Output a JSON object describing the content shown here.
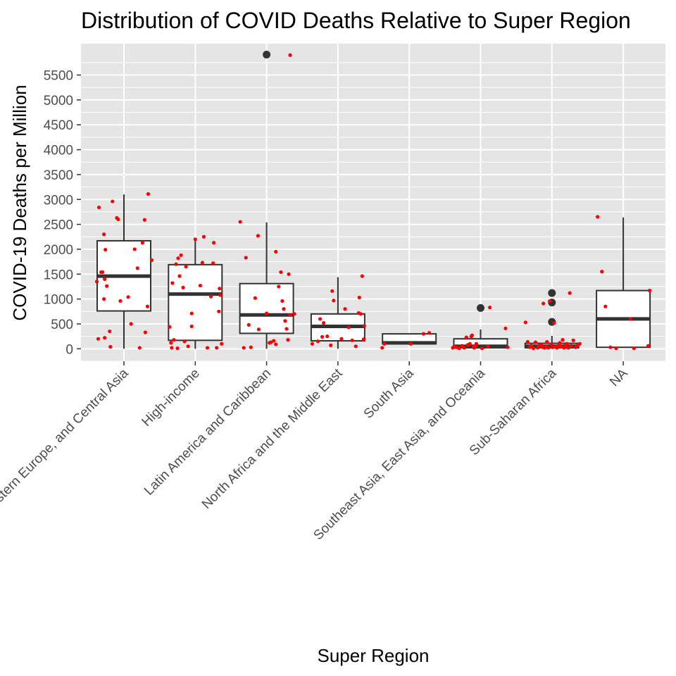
{
  "chart_data": {
    "type": "box",
    "title": "Distribution of COVID Deaths Relative to Super Region",
    "xlabel": "Super Region",
    "ylabel": "COVID-19 Deaths per Million",
    "ylim": [
      -250,
      6130
    ],
    "yticks": [
      0,
      500,
      1000,
      1500,
      2000,
      2500,
      3000,
      3500,
      4000,
      4500,
      5000,
      5500
    ],
    "grid": true,
    "colors": {
      "panel": "#e5e5e5",
      "grid": "#ffffff",
      "box_fill": "#ffffff",
      "box_line": "#333333",
      "outlier": "#333333",
      "jitter": "#ff0000"
    },
    "categories": [
      "Central Europe, Eastern Europe, and Central Asia",
      "High-income",
      "Latin America and Caribbean",
      "North Africa and the Middle East",
      "South Asia",
      "Southeast Asia, East Asia, and Oceania",
      "Sub-Saharan Africa",
      "NA"
    ],
    "boxes": [
      {
        "min": 0,
        "q1": 760,
        "median": 1460,
        "q3": 2170,
        "max": 3100,
        "outliers": []
      },
      {
        "min": 0,
        "q1": 170,
        "median": 1100,
        "q3": 1690,
        "max": 2200,
        "outliers": []
      },
      {
        "min": 0,
        "q1": 310,
        "median": 680,
        "q3": 1310,
        "max": 2540,
        "outliers": [
          5910
        ]
      },
      {
        "min": 0,
        "q1": 160,
        "median": 450,
        "q3": 700,
        "max": 1440,
        "outliers": []
      },
      {
        "min": 80,
        "q1": 100,
        "median": 120,
        "q3": 300,
        "max": 310,
        "outliers": []
      },
      {
        "min": 0,
        "q1": 20,
        "median": 50,
        "q3": 200,
        "max": 390,
        "outliers": [
          820
        ]
      },
      {
        "min": 0,
        "q1": 20,
        "median": 50,
        "q3": 110,
        "max": 260,
        "outliers": [
          540,
          930,
          1120
        ]
      },
      {
        "min": 20,
        "q1": 30,
        "median": 600,
        "q3": 1170,
        "max": 2640,
        "outliers": []
      }
    ],
    "jitter_points": [
      [
        [
          -0.38,
          1350
        ],
        [
          -0.36,
          200
        ],
        [
          -0.35,
          2840
        ],
        [
          -0.3,
          1540
        ],
        [
          -0.28,
          1000
        ],
        [
          -0.28,
          2300
        ],
        [
          -0.27,
          1400
        ],
        [
          -0.27,
          220
        ],
        [
          -0.26,
          1990
        ],
        [
          -0.24,
          1260
        ],
        [
          -0.2,
          350
        ],
        [
          -0.19,
          40
        ],
        [
          -0.16,
          2960
        ],
        [
          -0.1,
          2630
        ],
        [
          -0.08,
          2600
        ],
        [
          -0.05,
          960
        ],
        [
          0.06,
          1040
        ],
        [
          0.1,
          500
        ],
        [
          0.15,
          2000
        ],
        [
          0.19,
          1620
        ],
        [
          0.22,
          20
        ],
        [
          0.26,
          2130
        ],
        [
          0.29,
          2590
        ],
        [
          0.3,
          330
        ],
        [
          0.33,
          850
        ],
        [
          0.34,
          3110
        ],
        [
          0.39,
          1780
        ],
        [
          -0.32,
          1540
        ]
      ],
      [
        [
          -0.36,
          440
        ],
        [
          -0.34,
          120
        ],
        [
          -0.33,
          20
        ],
        [
          -0.32,
          1320
        ],
        [
          -0.3,
          180
        ],
        [
          -0.27,
          1700
        ],
        [
          -0.25,
          10
        ],
        [
          -0.24,
          1820
        ],
        [
          -0.22,
          1460
        ],
        [
          -0.2,
          1880
        ],
        [
          -0.17,
          1230
        ],
        [
          -0.15,
          150
        ],
        [
          -0.13,
          1650
        ],
        [
          -0.1,
          50
        ],
        [
          -0.05,
          710
        ],
        [
          -0.05,
          450
        ],
        [
          0,
          2200
        ],
        [
          0.07,
          1270
        ],
        [
          0.1,
          1730
        ],
        [
          0.12,
          2250
        ],
        [
          0.17,
          20
        ],
        [
          0.22,
          1050
        ],
        [
          0.25,
          1720
        ],
        [
          0.26,
          2130
        ],
        [
          0.3,
          20
        ],
        [
          0.33,
          750
        ],
        [
          0.34,
          1210
        ],
        [
          0.35,
          1080
        ],
        [
          0.37,
          100
        ]
      ],
      [
        [
          -0.37,
          2550
        ],
        [
          -0.32,
          20
        ],
        [
          -0.29,
          1830
        ],
        [
          -0.25,
          480
        ],
        [
          -0.22,
          30
        ],
        [
          -0.16,
          1020
        ],
        [
          -0.12,
          2270
        ],
        [
          -0.11,
          390
        ],
        [
          0,
          710
        ],
        [
          0.04,
          120
        ],
        [
          0.06,
          130
        ],
        [
          0.1,
          160
        ],
        [
          0.13,
          90
        ],
        [
          0.13,
          1950
        ],
        [
          0.17,
          1250
        ],
        [
          0.2,
          1540
        ],
        [
          0.22,
          960
        ],
        [
          0.24,
          800
        ],
        [
          0.26,
          560
        ],
        [
          0.28,
          400
        ],
        [
          0.3,
          180
        ],
        [
          0.31,
          1500
        ],
        [
          0.33,
          680
        ],
        [
          0.39,
          700
        ],
        [
          0.33,
          5900
        ]
      ],
      [
        [
          -0.36,
          100
        ],
        [
          -0.28,
          150
        ],
        [
          -0.25,
          600
        ],
        [
          -0.22,
          240
        ],
        [
          -0.2,
          520
        ],
        [
          -0.15,
          250
        ],
        [
          -0.1,
          70
        ],
        [
          -0.08,
          1160
        ],
        [
          -0.06,
          970
        ],
        [
          0.05,
          200
        ],
        [
          0.1,
          800
        ],
        [
          0.15,
          430
        ],
        [
          0.2,
          170
        ],
        [
          0.25,
          50
        ],
        [
          0.29,
          720
        ],
        [
          0.3,
          1030
        ],
        [
          0.32,
          700
        ],
        [
          0.34,
          1460
        ],
        [
          0.36,
          190
        ],
        [
          0.37,
          460
        ]
      ],
      [
        [
          -0.38,
          20
        ],
        [
          -0.35,
          100
        ],
        [
          0.02,
          100
        ],
        [
          0.2,
          300
        ],
        [
          0.28,
          320
        ]
      ],
      [
        [
          -0.39,
          20
        ],
        [
          -0.37,
          50
        ],
        [
          -0.34,
          30
        ],
        [
          -0.3,
          10
        ],
        [
          -0.26,
          60
        ],
        [
          -0.23,
          20
        ],
        [
          -0.2,
          230
        ],
        [
          -0.18,
          80
        ],
        [
          -0.15,
          100
        ],
        [
          -0.13,
          250
        ],
        [
          -0.12,
          270
        ],
        [
          -0.1,
          40
        ],
        [
          -0.09,
          20
        ],
        [
          -0.07,
          60
        ],
        [
          -0.06,
          100
        ],
        [
          0.02,
          10
        ],
        [
          0.1,
          50
        ],
        [
          0.13,
          830
        ],
        [
          0.35,
          410
        ],
        [
          0.38,
          30
        ]
      ],
      [
        [
          -0.37,
          530
        ],
        [
          -0.34,
          140
        ],
        [
          -0.31,
          30
        ],
        [
          -0.29,
          60
        ],
        [
          -0.26,
          10
        ],
        [
          -0.23,
          130
        ],
        [
          -0.2,
          20
        ],
        [
          -0.18,
          60
        ],
        [
          -0.15,
          80
        ],
        [
          -0.13,
          30
        ],
        [
          -0.12,
          910
        ],
        [
          -0.1,
          20
        ],
        [
          -0.08,
          50
        ],
        [
          -0.07,
          140
        ],
        [
          -0.05,
          20
        ],
        [
          -0.03,
          960
        ],
        [
          -0.01,
          90
        ],
        [
          0.01,
          30
        ],
        [
          0.03,
          520
        ],
        [
          0.05,
          40
        ],
        [
          0.07,
          20
        ],
        [
          0.09,
          60
        ],
        [
          0.11,
          120
        ],
        [
          0.13,
          40
        ],
        [
          0.15,
          180
        ],
        [
          0.17,
          20
        ],
        [
          0.19,
          70
        ],
        [
          0.21,
          100
        ],
        [
          0.23,
          20
        ],
        [
          0.25,
          1120
        ],
        [
          0.27,
          60
        ],
        [
          0.3,
          170
        ],
        [
          0.33,
          30
        ],
        [
          0.36,
          70
        ],
        [
          0.39,
          100
        ]
      ],
      [
        [
          -0.36,
          2650
        ],
        [
          -0.3,
          1550
        ],
        [
          -0.25,
          850
        ],
        [
          -0.18,
          30
        ],
        [
          -0.1,
          10
        ],
        [
          0.1,
          600
        ],
        [
          0.15,
          10
        ],
        [
          0.35,
          60
        ],
        [
          0.37,
          1170
        ]
      ]
    ]
  }
}
